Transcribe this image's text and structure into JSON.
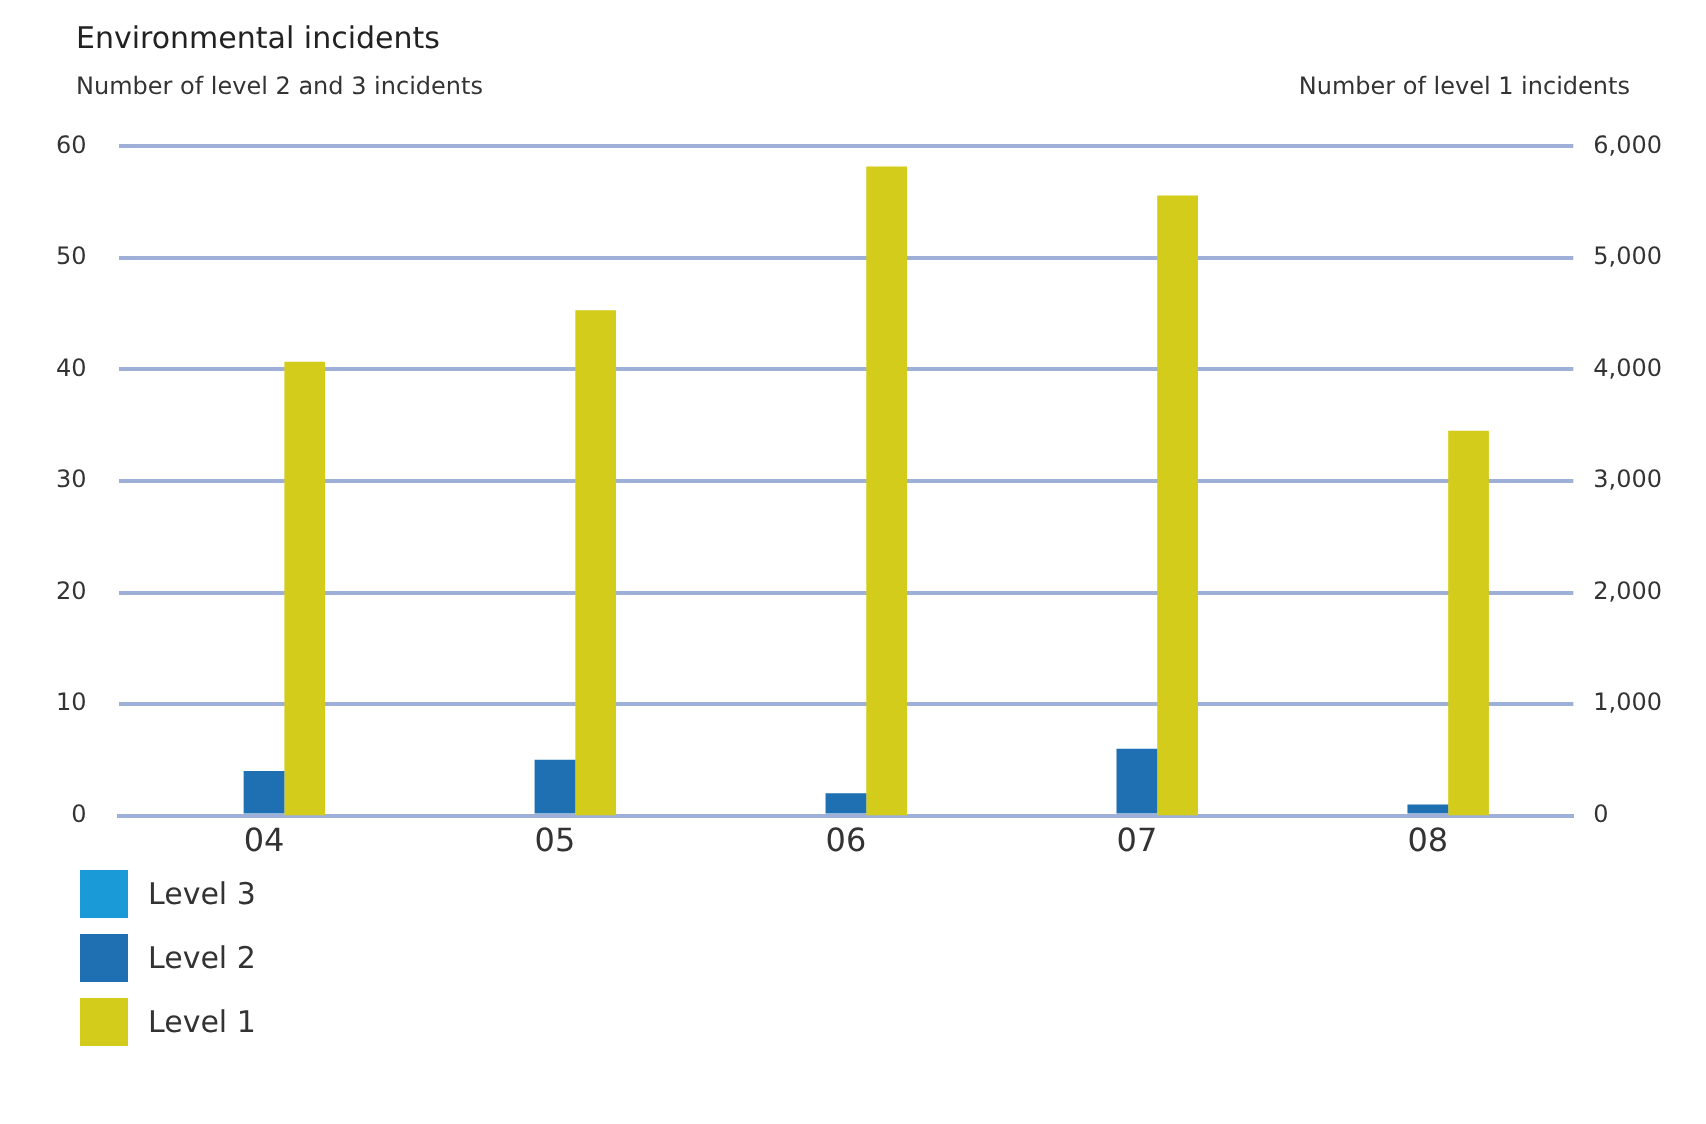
{
  "chart_data": {
    "type": "bar",
    "title": "Environmental incidents",
    "ylabel": "Number of level 2 and 3 incidents",
    "y2label": "Number of level 1 incidents",
    "categories": [
      "04",
      "05",
      "06",
      "07",
      "08"
    ],
    "series": [
      {
        "name": "Level 3",
        "color": "#1a9ad6",
        "values": [
          0,
          0,
          0,
          0,
          0
        ]
      },
      {
        "name": "Level 2",
        "color": "#1f6fb3",
        "values": [
          4,
          5,
          2,
          6,
          1
        ]
      },
      {
        "name": "Level 1",
        "color": "#d4cc1a",
        "values": [
          4070,
          4530,
          5820,
          5560,
          3450
        ],
        "axis": "y2"
      }
    ],
    "ylim": [
      0,
      60
    ],
    "yticks": [
      0,
      10,
      20,
      30,
      40,
      50,
      60
    ],
    "y2lim": [
      0,
      6000
    ],
    "y2ticks": [
      0,
      {
        "value": 1000,
        "label": "1,000"
      },
      {
        "value": 2000,
        "label": "2,000"
      },
      {
        "value": 3000,
        "label": "3,000"
      },
      {
        "value": 4000,
        "label": "4,000"
      },
      {
        "value": 5000,
        "label": "5,000"
      },
      {
        "value": 6000,
        "label": "6,000"
      }
    ],
    "grid": "y",
    "legend": "bottom left"
  }
}
